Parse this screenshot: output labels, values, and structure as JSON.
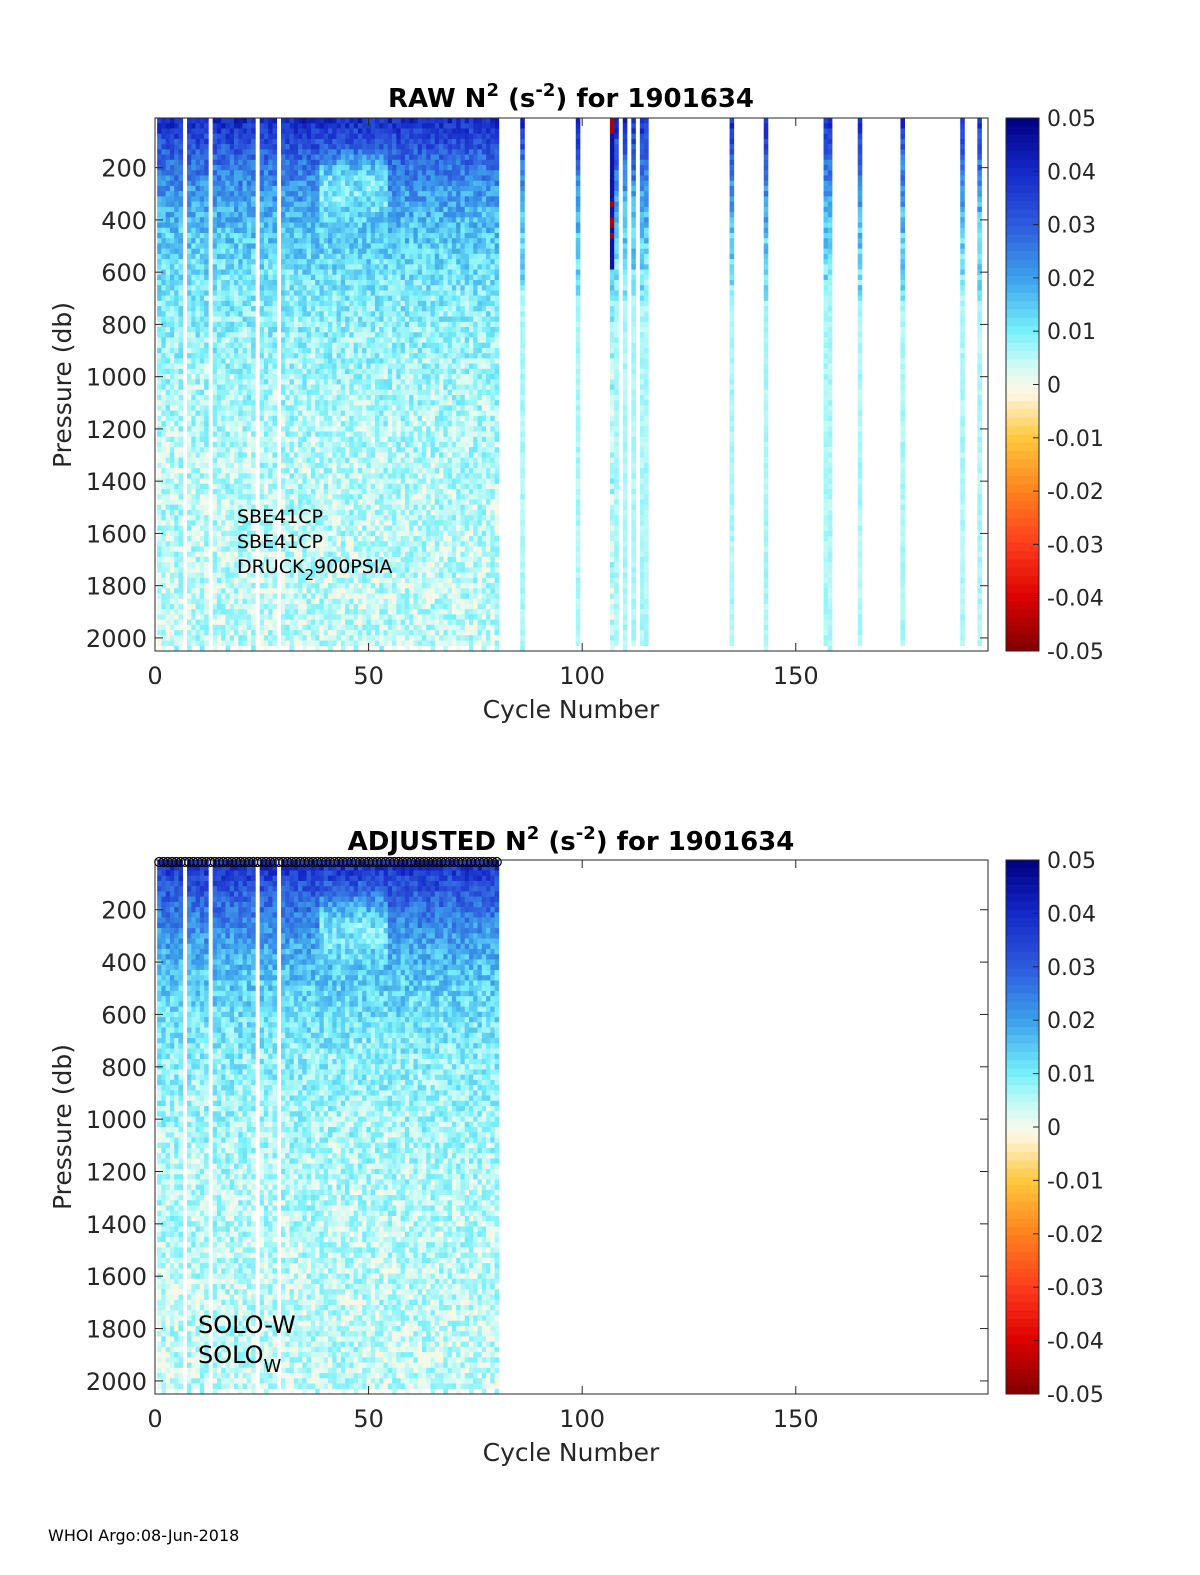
{
  "chart_data": [
    {
      "type": "heatmap",
      "id": "raw",
      "title_parts": [
        "RAW N",
        "2",
        " (s",
        "-2",
        ") for 1901634"
      ],
      "xlabel": "Cycle Number",
      "ylabel": "Pressure (db)",
      "xlim": [
        0,
        195
      ],
      "ylim": [
        2050,
        10
      ],
      "x_ticks": [
        0,
        50,
        100,
        150
      ],
      "y_ticks": [
        200,
        400,
        600,
        800,
        1000,
        1200,
        1400,
        1600,
        1800,
        2000
      ],
      "annotations": [
        "SBE41CP",
        "SBE41CP",
        "DRUCK",
        "2",
        "900PSIA"
      ],
      "profile_cycles_dense": [
        1,
        80
      ],
      "dense_gap_cycles": [
        7,
        13,
        24,
        29
      ],
      "sparse_profile_cycles": [
        86,
        99,
        107,
        108,
        110,
        112,
        114,
        115,
        135,
        143,
        157,
        158,
        165,
        175,
        189,
        193
      ],
      "colorbar": {
        "range": [
          -0.05,
          0.05
        ],
        "ticks": [
          0.05,
          0.04,
          0.03,
          0.02,
          0.01,
          0,
          -0.01,
          -0.02,
          -0.03,
          -0.04,
          -0.05
        ],
        "tick_labels": [
          "0.05",
          "0.04",
          "0.03",
          "0.02",
          "0.01",
          "0",
          "-0.01",
          "-0.02",
          "-0.03",
          "-0.04",
          "-0.05"
        ]
      }
    },
    {
      "type": "heatmap",
      "id": "adjusted",
      "title_parts": [
        "ADJUSTED N",
        "2",
        " (s",
        "-2",
        ") for 1901634"
      ],
      "xlabel": "Cycle Number",
      "ylabel": "Pressure (db)",
      "xlim": [
        0,
        195
      ],
      "ylim": [
        2050,
        10
      ],
      "x_ticks": [
        0,
        50,
        100,
        150
      ],
      "y_ticks": [
        200,
        400,
        600,
        800,
        1000,
        1200,
        1400,
        1600,
        1800,
        2000
      ],
      "annotations": [
        "SOLO-W",
        "SOLO",
        "W"
      ],
      "profile_cycles_dense": [
        1,
        80
      ],
      "dense_gap_cycles": [
        7,
        13,
        24,
        29
      ],
      "qc_marker_cycles": [
        1,
        80
      ],
      "colorbar": {
        "range": [
          -0.05,
          0.05
        ],
        "ticks": [
          0.05,
          0.04,
          0.03,
          0.02,
          0.01,
          0,
          -0.01,
          -0.02,
          -0.03,
          -0.04,
          -0.05
        ],
        "tick_labels": [
          "0.05",
          "0.04",
          "0.03",
          "0.02",
          "0.01",
          "0",
          "-0.01",
          "-0.02",
          "-0.03",
          "-0.04",
          "-0.05"
        ]
      }
    }
  ],
  "footer": "WHOI Argo:08-Jun-2018"
}
